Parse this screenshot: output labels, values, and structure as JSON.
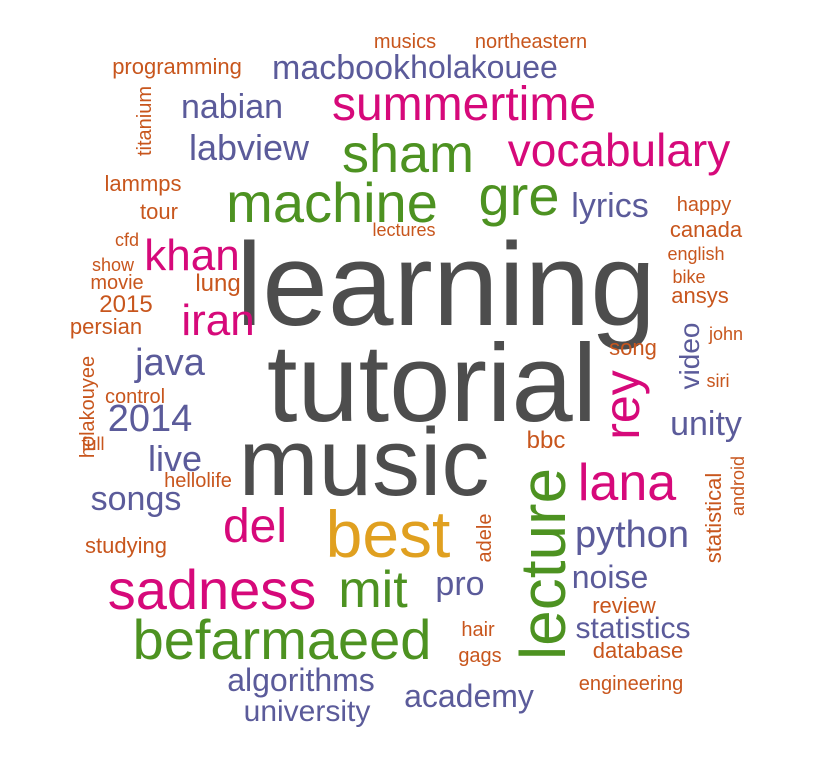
{
  "palette": {
    "gray": "#4d4d4d",
    "green": "#4d9221",
    "magenta": "#d6097a",
    "purple": "#5b5b9a",
    "orange": "#c8561d",
    "gold": "#e0a020"
  },
  "words": [
    {
      "text": "learning",
      "color": "gray",
      "vertical": false
    },
    {
      "text": "tutorial",
      "color": "gray",
      "vertical": false
    },
    {
      "text": "music",
      "color": "gray",
      "vertical": false
    },
    {
      "text": "best",
      "color": "gold",
      "vertical": false
    },
    {
      "text": "lecture",
      "color": "green",
      "vertical": true
    },
    {
      "text": "befarmaeed",
      "color": "green",
      "vertical": false
    },
    {
      "text": "sadness",
      "color": "magenta",
      "vertical": false
    },
    {
      "text": "mit",
      "color": "green",
      "vertical": false
    },
    {
      "text": "machine",
      "color": "green",
      "vertical": false
    },
    {
      "text": "gre",
      "color": "green",
      "vertical": false
    },
    {
      "text": "sham",
      "color": "green",
      "vertical": false
    },
    {
      "text": "summertime",
      "color": "magenta",
      "vertical": false
    },
    {
      "text": "vocabulary",
      "color": "magenta",
      "vertical": false
    },
    {
      "text": "rey",
      "color": "magenta",
      "vertical": true
    },
    {
      "text": "lana",
      "color": "magenta",
      "vertical": false
    },
    {
      "text": "del",
      "color": "magenta",
      "vertical": false
    },
    {
      "text": "khan",
      "color": "magenta",
      "vertical": false
    },
    {
      "text": "iran",
      "color": "magenta",
      "vertical": false
    },
    {
      "text": "python",
      "color": "purple",
      "vertical": false
    },
    {
      "text": "java",
      "color": "purple",
      "vertical": false
    },
    {
      "text": "2014",
      "color": "purple",
      "vertical": false
    },
    {
      "text": "live",
      "color": "purple",
      "vertical": false
    },
    {
      "text": "songs",
      "color": "purple",
      "vertical": false
    },
    {
      "text": "unity",
      "color": "purple",
      "vertical": false
    },
    {
      "text": "video",
      "color": "purple",
      "vertical": true
    },
    {
      "text": "lyrics",
      "color": "purple",
      "vertical": false
    },
    {
      "text": "labview",
      "color": "purple",
      "vertical": false
    },
    {
      "text": "nabian",
      "color": "purple",
      "vertical": false
    },
    {
      "text": "macbook",
      "color": "purple",
      "vertical": false
    },
    {
      "text": "holakouee",
      "color": "purple",
      "vertical": false
    },
    {
      "text": "pro",
      "color": "purple",
      "vertical": false
    },
    {
      "text": "noise",
      "color": "purple",
      "vertical": false
    },
    {
      "text": "statistics",
      "color": "purple",
      "vertical": false
    },
    {
      "text": "algorithms",
      "color": "purple",
      "vertical": false
    },
    {
      "text": "academy",
      "color": "purple",
      "vertical": false
    },
    {
      "text": "university",
      "color": "purple",
      "vertical": false
    },
    {
      "text": "musics",
      "color": "orange",
      "vertical": false
    },
    {
      "text": "northeastern",
      "color": "orange",
      "vertical": false
    },
    {
      "text": "programming",
      "color": "orange",
      "vertical": false
    },
    {
      "text": "titanium",
      "color": "orange",
      "vertical": true
    },
    {
      "text": "lammps",
      "color": "orange",
      "vertical": false
    },
    {
      "text": "tour",
      "color": "orange",
      "vertical": false
    },
    {
      "text": "cfd",
      "color": "orange",
      "vertical": false
    },
    {
      "text": "show",
      "color": "orange",
      "vertical": false
    },
    {
      "text": "movie",
      "color": "orange",
      "vertical": false
    },
    {
      "text": "lung",
      "color": "orange",
      "vertical": false
    },
    {
      "text": "2015",
      "color": "orange",
      "vertical": false
    },
    {
      "text": "persian",
      "color": "orange",
      "vertical": false
    },
    {
      "text": "holakouyee",
      "color": "orange",
      "vertical": true
    },
    {
      "text": "control",
      "color": "orange",
      "vertical": false
    },
    {
      "text": "full",
      "color": "orange",
      "vertical": false
    },
    {
      "text": "hellolife",
      "color": "orange",
      "vertical": false
    },
    {
      "text": "studying",
      "color": "orange",
      "vertical": false
    },
    {
      "text": "lectures",
      "color": "orange",
      "vertical": false
    },
    {
      "text": "happy",
      "color": "orange",
      "vertical": false
    },
    {
      "text": "canada",
      "color": "orange",
      "vertical": false
    },
    {
      "text": "english",
      "color": "orange",
      "vertical": false
    },
    {
      "text": "bike",
      "color": "orange",
      "vertical": false
    },
    {
      "text": "ansys",
      "color": "orange",
      "vertical": false
    },
    {
      "text": "john",
      "color": "orange",
      "vertical": false
    },
    {
      "text": "song",
      "color": "orange",
      "vertical": false
    },
    {
      "text": "siri",
      "color": "orange",
      "vertical": false
    },
    {
      "text": "bbc",
      "color": "orange",
      "vertical": false
    },
    {
      "text": "statistical",
      "color": "orange",
      "vertical": true
    },
    {
      "text": "android",
      "color": "orange",
      "vertical": true
    },
    {
      "text": "adele",
      "color": "orange",
      "vertical": true
    },
    {
      "text": "review",
      "color": "orange",
      "vertical": false
    },
    {
      "text": "hair",
      "color": "orange",
      "vertical": false
    },
    {
      "text": "gags",
      "color": "orange",
      "vertical": false
    },
    {
      "text": "database",
      "color": "orange",
      "vertical": false
    },
    {
      "text": "engineering",
      "color": "orange",
      "vertical": false
    }
  ]
}
